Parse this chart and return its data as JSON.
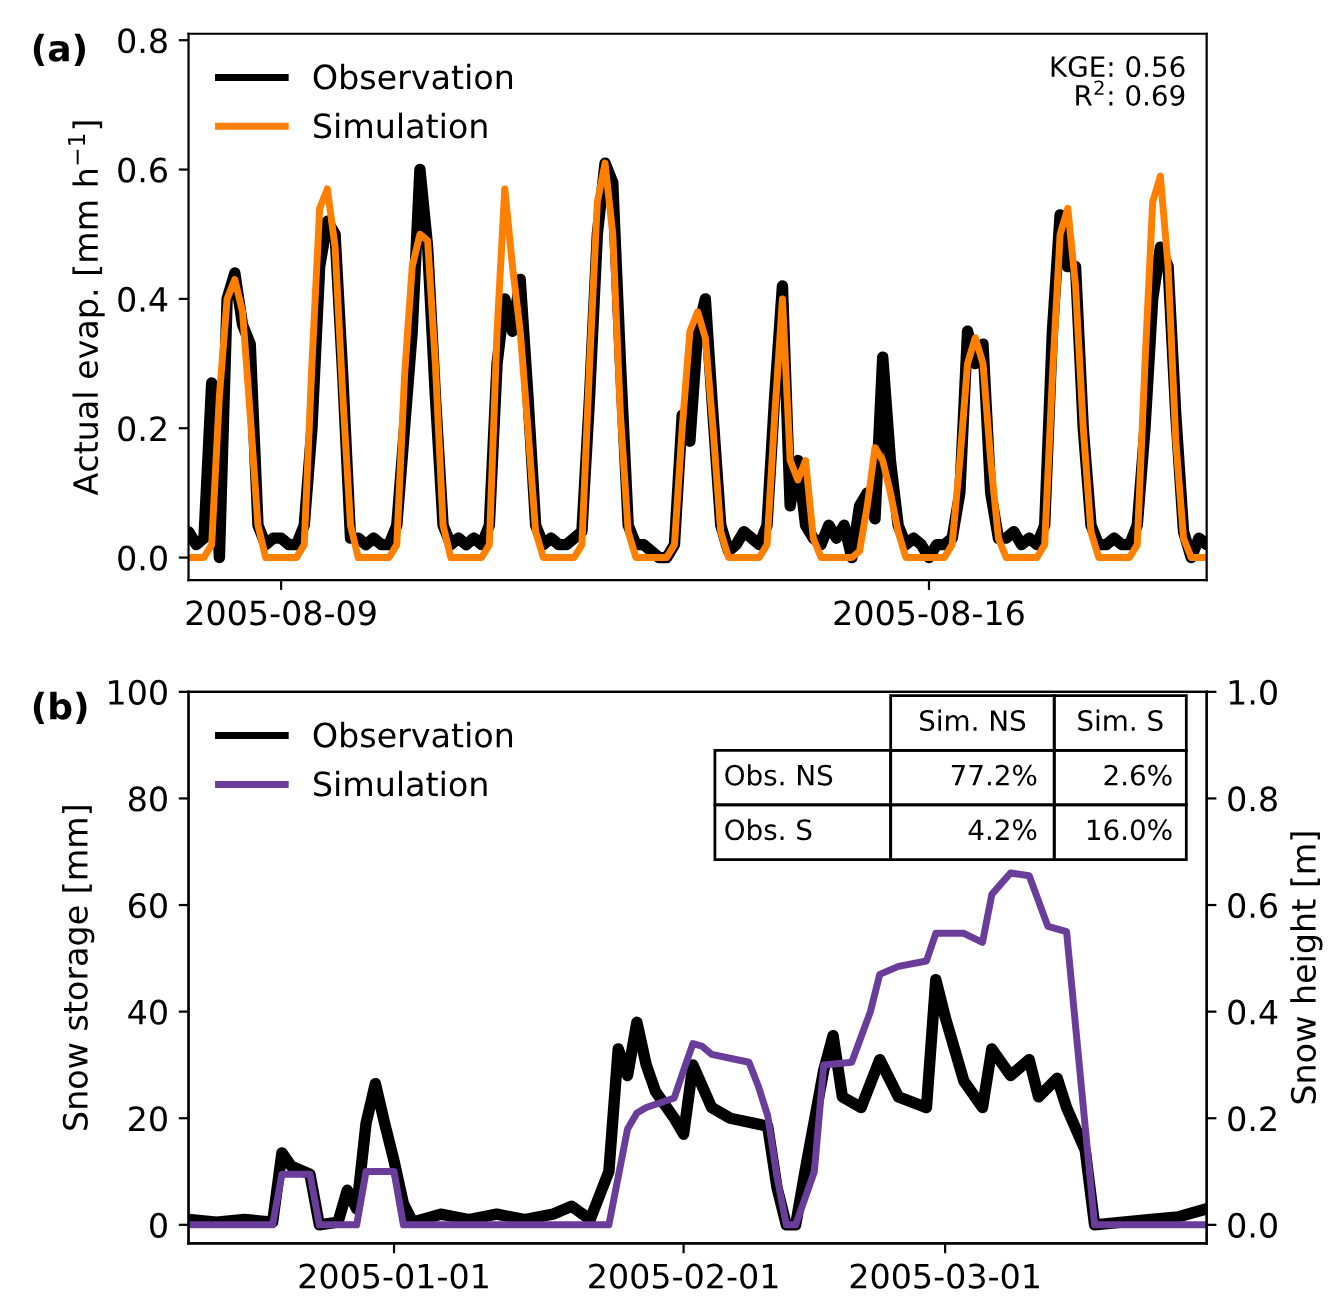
{
  "chart_data": [
    {
      "type": "line",
      "title": "(a)",
      "ylabel": "Actual evap. [mm h$^{−1}$]",
      "annotations": [
        "KGE: 0.56",
        "R$^{2}$: 0.69"
      ],
      "x": [
        "2005-08-08T00:00",
        "2005-08-08T02:00",
        "2005-08-08T04:00",
        "2005-08-08T06:00",
        "2005-08-08T08:00",
        "2005-08-08T10:00",
        "2005-08-08T12:00",
        "2005-08-08T14:00",
        "2005-08-08T16:00",
        "2005-08-08T18:00",
        "2005-08-08T20:00",
        "2005-08-08T22:00",
        "2005-08-09T00:00",
        "2005-08-09T02:00",
        "2005-08-09T04:00",
        "2005-08-09T06:00",
        "2005-08-09T08:00",
        "2005-08-09T10:00",
        "2005-08-09T12:00",
        "2005-08-09T14:00",
        "2005-08-09T16:00",
        "2005-08-09T18:00",
        "2005-08-09T20:00",
        "2005-08-09T22:00",
        "2005-08-10T00:00",
        "2005-08-10T02:00",
        "2005-08-10T04:00",
        "2005-08-10T06:00",
        "2005-08-10T08:00",
        "2005-08-10T10:00",
        "2005-08-10T12:00",
        "2005-08-10T14:00",
        "2005-08-10T16:00",
        "2005-08-10T18:00",
        "2005-08-10T20:00",
        "2005-08-10T22:00",
        "2005-08-11T00:00",
        "2005-08-11T02:00",
        "2005-08-11T04:00",
        "2005-08-11T06:00",
        "2005-08-11T08:00",
        "2005-08-11T10:00",
        "2005-08-11T12:00",
        "2005-08-11T14:00",
        "2005-08-11T16:00",
        "2005-08-11T18:00",
        "2005-08-11T20:00",
        "2005-08-11T22:00",
        "2005-08-12T00:00",
        "2005-08-12T02:00",
        "2005-08-12T04:00",
        "2005-08-12T06:00",
        "2005-08-12T08:00",
        "2005-08-12T10:00",
        "2005-08-12T12:00",
        "2005-08-12T14:00",
        "2005-08-12T16:00",
        "2005-08-12T18:00",
        "2005-08-12T20:00",
        "2005-08-12T22:00",
        "2005-08-13T00:00",
        "2005-08-13T02:00",
        "2005-08-13T04:00",
        "2005-08-13T06:00",
        "2005-08-13T08:00",
        "2005-08-13T10:00",
        "2005-08-13T12:00",
        "2005-08-13T14:00",
        "2005-08-13T16:00",
        "2005-08-13T18:00",
        "2005-08-13T20:00",
        "2005-08-13T22:00",
        "2005-08-14T00:00",
        "2005-08-14T02:00",
        "2005-08-14T04:00",
        "2005-08-14T06:00",
        "2005-08-14T08:00",
        "2005-08-14T10:00",
        "2005-08-14T12:00",
        "2005-08-14T14:00",
        "2005-08-14T16:00",
        "2005-08-14T18:00",
        "2005-08-14T20:00",
        "2005-08-14T22:00",
        "2005-08-15T00:00",
        "2005-08-15T02:00",
        "2005-08-15T04:00",
        "2005-08-15T06:00",
        "2005-08-15T08:00",
        "2005-08-15T10:00",
        "2005-08-15T12:00",
        "2005-08-15T14:00",
        "2005-08-15T16:00",
        "2005-08-15T18:00",
        "2005-08-15T20:00",
        "2005-08-15T22:00",
        "2005-08-16T00:00",
        "2005-08-16T02:00",
        "2005-08-16T04:00",
        "2005-08-16T06:00",
        "2005-08-16T08:00",
        "2005-08-16T10:00",
        "2005-08-16T12:00",
        "2005-08-16T14:00",
        "2005-08-16T16:00",
        "2005-08-16T18:00",
        "2005-08-16T20:00",
        "2005-08-16T22:00",
        "2005-08-17T00:00",
        "2005-08-17T02:00",
        "2005-08-17T04:00",
        "2005-08-17T06:00",
        "2005-08-17T08:00",
        "2005-08-17T10:00",
        "2005-08-17T12:00",
        "2005-08-17T14:00",
        "2005-08-17T16:00",
        "2005-08-17T18:00",
        "2005-08-17T20:00",
        "2005-08-17T22:00",
        "2005-08-18T00:00",
        "2005-08-18T02:00",
        "2005-08-18T04:00",
        "2005-08-18T06:00",
        "2005-08-18T08:00",
        "2005-08-18T10:00",
        "2005-08-18T12:00",
        "2005-08-18T14:00",
        "2005-08-18T16:00",
        "2005-08-18T18:00",
        "2005-08-18T20:00",
        "2005-08-18T22:00",
        "2005-08-19T00:00"
      ],
      "series": [
        {
          "name": "Observation",
          "color": "#000000",
          "values": [
            0.04,
            0.02,
            0.03,
            0.27,
            0.0,
            0.4,
            0.44,
            0.36,
            0.33,
            0.05,
            0.02,
            0.03,
            0.03,
            0.02,
            0.02,
            0.05,
            0.2,
            0.45,
            0.52,
            0.5,
            0.28,
            0.03,
            0.03,
            0.02,
            0.03,
            0.02,
            0.02,
            0.05,
            0.2,
            0.35,
            0.6,
            0.48,
            0.25,
            0.05,
            0.02,
            0.03,
            0.02,
            0.03,
            0.02,
            0.05,
            0.3,
            0.4,
            0.35,
            0.43,
            0.25,
            0.05,
            0.02,
            0.03,
            0.02,
            0.02,
            0.03,
            0.04,
            0.25,
            0.5,
            0.61,
            0.58,
            0.3,
            0.05,
            0.02,
            0.02,
            0.01,
            0.0,
            0.0,
            0.02,
            0.22,
            0.18,
            0.35,
            0.4,
            0.22,
            0.05,
            0.01,
            0.02,
            0.04,
            0.03,
            0.02,
            0.05,
            0.25,
            0.42,
            0.08,
            0.15,
            0.05,
            0.03,
            0.02,
            0.05,
            0.03,
            0.05,
            0.0,
            0.08,
            0.1,
            0.06,
            0.31,
            0.15,
            0.05,
            0.02,
            0.03,
            0.02,
            0.0,
            0.02,
            0.02,
            0.03,
            0.1,
            0.35,
            0.3,
            0.33,
            0.1,
            0.03,
            0.03,
            0.04,
            0.02,
            0.03,
            0.02,
            0.05,
            0.35,
            0.53,
            0.45,
            0.45,
            0.2,
            0.05,
            0.02,
            0.02,
            0.03,
            0.02,
            0.02,
            0.05,
            0.2,
            0.4,
            0.48,
            0.45,
            0.22,
            0.04,
            0.0,
            0.03,
            0.02
          ]
        },
        {
          "name": "Simulation",
          "color": "#ff7f00",
          "values": [
            0,
            0,
            0,
            0.02,
            0.25,
            0.4,
            0.43,
            0.38,
            0.22,
            0.05,
            0,
            0,
            0,
            0,
            0,
            0.02,
            0.3,
            0.54,
            0.57,
            0.48,
            0.25,
            0.05,
            0,
            0,
            0,
            0,
            0,
            0.02,
            0.28,
            0.45,
            0.5,
            0.49,
            0.3,
            0.05,
            0,
            0,
            0,
            0,
            0,
            0.02,
            0.35,
            0.57,
            0.45,
            0.35,
            0.2,
            0.04,
            0,
            0,
            0,
            0,
            0,
            0.02,
            0.3,
            0.55,
            0.61,
            0.5,
            0.22,
            0.04,
            0,
            0,
            0,
            0,
            0,
            0.02,
            0.2,
            0.35,
            0.38,
            0.34,
            0.2,
            0.04,
            0,
            0,
            0,
            0,
            0,
            0.02,
            0.22,
            0.4,
            0.15,
            0.12,
            0.15,
            0.03,
            0,
            0,
            0,
            0,
            0,
            0.01,
            0.08,
            0.17,
            0.15,
            0.1,
            0.04,
            0,
            0,
            0,
            0,
            0,
            0,
            0.02,
            0.15,
            0.3,
            0.34,
            0.3,
            0.15,
            0.03,
            0,
            0,
            0,
            0,
            0,
            0.02,
            0.28,
            0.5,
            0.54,
            0.42,
            0.2,
            0.04,
            0,
            0,
            0,
            0,
            0,
            0.02,
            0.3,
            0.55,
            0.59,
            0.45,
            0.18,
            0.03,
            0,
            0,
            0
          ]
        }
      ],
      "xlim": [
        "2005-08-08T00:00",
        "2005-08-19T00:00"
      ],
      "xticks": [
        "2005-08-09",
        "2005-08-16"
      ],
      "ylim": [
        -0.035,
        0.81
      ],
      "yticks": [
        {
          "value": 0,
          "label": "0.0"
        },
        0.2,
        0.4,
        0.6,
        0.8
      ],
      "legend": "top left",
      "grid": false
    },
    {
      "type": "line",
      "title": "(b)",
      "ylabel": "Snow storage [mm]",
      "y2label": "Snow height [m]",
      "annotations": [
        "Sim. NS",
        "Sim. S",
        "Obs. NS",
        "77.2%",
        "2.6%",
        "Obs. S",
        "4.2%",
        "16.0%"
      ],
      "series": [
        {
          "name": "Observation",
          "color": "#000000",
          "x": [
            "2004-12-10",
            "2004-12-13",
            "2004-12-16",
            "2004-12-19",
            "2004-12-20",
            "2004-12-21",
            "2004-12-23",
            "2004-12-24",
            "2004-12-26",
            "2004-12-27",
            "2004-12-28",
            "2004-12-29",
            "2004-12-30",
            "2004-12-31",
            "2005-01-01",
            "2005-01-02",
            "2005-01-03",
            "2005-01-06",
            "2005-01-09",
            "2005-01-12",
            "2005-01-15",
            "2005-01-18",
            "2005-01-20",
            "2005-01-22",
            "2005-01-24",
            "2005-01-25",
            "2005-01-26",
            "2005-01-27",
            "2005-01-28",
            "2005-01-29",
            "2005-01-31",
            "2005-02-01",
            "2005-02-02",
            "2005-02-04",
            "2005-02-06",
            "2005-02-10",
            "2005-02-11",
            "2005-02-12",
            "2005-02-13",
            "2005-02-14",
            "2005-02-16",
            "2005-02-17",
            "2005-02-18",
            "2005-02-20",
            "2005-02-22",
            "2005-02-24",
            "2005-02-27",
            "2005-02-28",
            "2005-03-01",
            "2005-03-03",
            "2005-03-05",
            "2005-03-06",
            "2005-03-08",
            "2005-03-10",
            "2005-03-11",
            "2005-03-13",
            "2005-03-14",
            "2005-03-16",
            "2005-03-17",
            "2005-03-20",
            "2005-03-23",
            "2005-03-26",
            "2005-03-29"
          ],
          "values": [
            1,
            0.5,
            1,
            0.5,
            13.5,
            11,
            9.5,
            0,
            0.5,
            6.5,
            3,
            19,
            26.5,
            19,
            12,
            4,
            0.5,
            2,
            1,
            2,
            1,
            2,
            3.5,
            1,
            10,
            33,
            28,
            38,
            30,
            25,
            20,
            17,
            30,
            22,
            20,
            18.5,
            7,
            0,
            0,
            10,
            29,
            35.5,
            24,
            22,
            31,
            24,
            22,
            46,
            39,
            27,
            22,
            33,
            28,
            31,
            24,
            27.5,
            22,
            14,
            0,
            0.5,
            1,
            1.5,
            3
          ]
        },
        {
          "name": "Simulation",
          "color": "#6a3d9a",
          "x": [
            "2004-12-10",
            "2004-12-19",
            "2004-12-20",
            "2004-12-23",
            "2004-12-24",
            "2004-12-28",
            "2004-12-29",
            "2005-01-01",
            "2005-01-02",
            "2005-01-24",
            "2005-01-25",
            "2005-01-26",
            "2005-01-27",
            "2005-01-28",
            "2005-01-31",
            "2005-02-01",
            "2005-02-02",
            "2005-02-03",
            "2005-02-04",
            "2005-02-08",
            "2005-02-09",
            "2005-02-10",
            "2005-02-11",
            "2005-02-12",
            "2005-02-13",
            "2005-02-15",
            "2005-02-16",
            "2005-02-19",
            "2005-02-21",
            "2005-02-22",
            "2005-02-24",
            "2005-02-27",
            "2005-02-28",
            "2005-03-03",
            "2005-03-05",
            "2005-03-06",
            "2005-03-08",
            "2005-03-10",
            "2005-03-12",
            "2005-03-14",
            "2005-03-17",
            "2005-03-29"
          ],
          "values": [
            0,
            0,
            9.5,
            9.5,
            0,
            0,
            10,
            10,
            0,
            0,
            9,
            18,
            21,
            22,
            23.8,
            29,
            34,
            33.5,
            32,
            30.5,
            26,
            20.5,
            9,
            0,
            0,
            10,
            30,
            30.5,
            40,
            47,
            48.5,
            49.5,
            54.7,
            54.7,
            53,
            62,
            66,
            65.5,
            56,
            55,
            0,
            0
          ]
        }
      ],
      "xlim": [
        "2004-12-10",
        "2005-03-29"
      ],
      "xticks": [
        "2005-01-01",
        "2005-02-01",
        "2005-03-01"
      ],
      "ylim": [
        -3.5,
        100
      ],
      "yticks": [
        0,
        20,
        40,
        60,
        80,
        100
      ],
      "y2lim": [
        -0.035,
        1.0
      ],
      "y2ticks": [
        {
          "value": 0,
          "label": "0.0"
        },
        0.2,
        0.4,
        0.6,
        0.8,
        {
          "value": 1,
          "label": "1.0"
        }
      ],
      "legend": "top left",
      "grid": false
    }
  ]
}
